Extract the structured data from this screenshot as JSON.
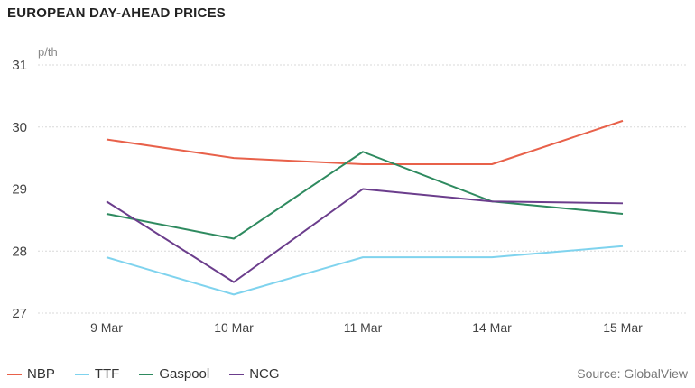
{
  "title": "EUROPEAN DAY-AHEAD PRICES",
  "source": "Source: GlobalView",
  "chart_data": {
    "type": "line",
    "title": "EUROPEAN DAY-AHEAD PRICES",
    "ylabel": "p/th",
    "xlabel": "",
    "categories": [
      "9 Mar",
      "10 Mar",
      "11 Mar",
      "14 Mar",
      "15 Mar"
    ],
    "ylim": [
      27,
      31
    ],
    "yticks": [
      27,
      28,
      29,
      30,
      31
    ],
    "grid": true,
    "legend": "bottom-left",
    "series": [
      {
        "name": "NBP",
        "color": "#e8614a",
        "values": [
          29.8,
          29.5,
          29.4,
          29.4,
          30.1
        ]
      },
      {
        "name": "TTF",
        "color": "#7fd3ee",
        "values": [
          27.9,
          27.3,
          27.9,
          27.9,
          28.08
        ]
      },
      {
        "name": "Gaspool",
        "color": "#2e8a5f",
        "values": [
          28.6,
          28.2,
          29.6,
          28.8,
          28.6
        ]
      },
      {
        "name": "NCG",
        "color": "#6b3d8c",
        "values": [
          28.8,
          27.5,
          29.0,
          28.8,
          28.77
        ]
      }
    ]
  }
}
